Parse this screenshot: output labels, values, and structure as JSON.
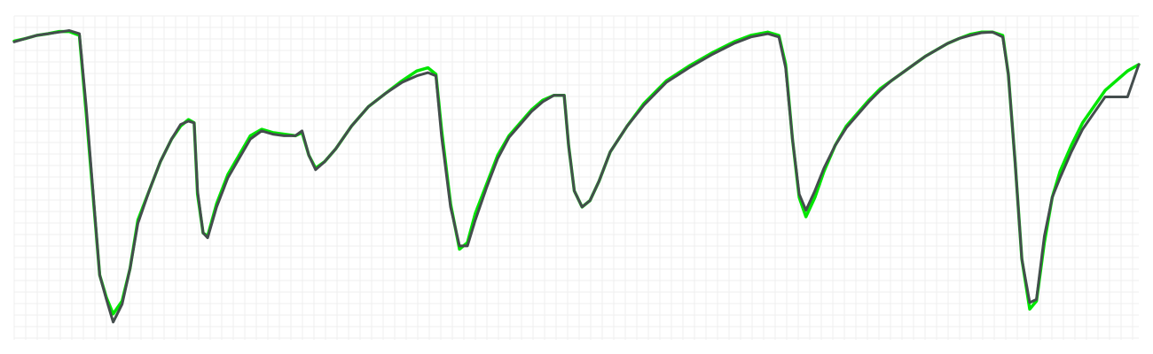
{
  "chart_data": {
    "type": "line",
    "title": "",
    "xlabel": "",
    "ylabel": "",
    "xlim": [
      0,
      100
    ],
    "ylim": [
      0,
      100
    ],
    "grid": true,
    "legend": "none",
    "series": [
      {
        "color": "#00e600",
        "points": [
          [
            0,
            92.2
          ],
          [
            1,
            93.0
          ],
          [
            2,
            94.0
          ],
          [
            3,
            94.5
          ],
          [
            4,
            95.2
          ],
          [
            4.9,
            95.2
          ],
          [
            5.8,
            94.0
          ],
          [
            6.4,
            70.0
          ],
          [
            7.0,
            45.0
          ],
          [
            7.6,
            20.0
          ],
          [
            8.2,
            13.0
          ],
          [
            8.8,
            8.0
          ],
          [
            9.6,
            12.0
          ],
          [
            10.3,
            22.0
          ],
          [
            11.0,
            37.0
          ],
          [
            12.0,
            46.0
          ],
          [
            13.0,
            55.0
          ],
          [
            14.0,
            62.0
          ],
          [
            14.8,
            66.0
          ],
          [
            15.5,
            68.0
          ],
          [
            16.0,
            67.0
          ],
          [
            16.3,
            45.0
          ],
          [
            16.8,
            33.0
          ],
          [
            17.2,
            32.0
          ],
          [
            18.0,
            42.0
          ],
          [
            19.0,
            51.0
          ],
          [
            20.0,
            57.0
          ],
          [
            21.0,
            63.0
          ],
          [
            22.0,
            65.0
          ],
          [
            23.0,
            64.0
          ],
          [
            24.0,
            63.5
          ],
          [
            25.0,
            63.0
          ],
          [
            25.6,
            64.0
          ],
          [
            26.2,
            57.0
          ],
          [
            26.8,
            53.0
          ],
          [
            27.6,
            55.0
          ],
          [
            28.6,
            59.0
          ],
          [
            30.0,
            66.0
          ],
          [
            31.5,
            72.0
          ],
          [
            33.0,
            76.0
          ],
          [
            34.5,
            80.0
          ],
          [
            35.8,
            83.0
          ],
          [
            36.8,
            84.0
          ],
          [
            37.5,
            82.0
          ],
          [
            38.0,
            65.0
          ],
          [
            38.8,
            42.0
          ],
          [
            39.6,
            28.0
          ],
          [
            40.3,
            30.0
          ],
          [
            41.0,
            39.0
          ],
          [
            42.0,
            48.0
          ],
          [
            43.0,
            57.0
          ],
          [
            44.0,
            63.0
          ],
          [
            45.0,
            67.0
          ],
          [
            46.0,
            71.0
          ],
          [
            47.0,
            74.0
          ],
          [
            48.0,
            75.5
          ],
          [
            48.9,
            75.5
          ],
          [
            49.3,
            60.0
          ],
          [
            49.8,
            46.0
          ],
          [
            50.5,
            41.0
          ],
          [
            51.2,
            43.0
          ],
          [
            52.0,
            49.0
          ],
          [
            53.0,
            58.0
          ],
          [
            54.5,
            66.0
          ],
          [
            56.0,
            73.0
          ],
          [
            58.0,
            80.0
          ],
          [
            60.0,
            84.5
          ],
          [
            62.0,
            88.5
          ],
          [
            64.0,
            92.0
          ],
          [
            65.5,
            94.0
          ],
          [
            67.0,
            95.0
          ],
          [
            68.0,
            94.0
          ],
          [
            68.6,
            85.0
          ],
          [
            69.2,
            62.0
          ],
          [
            69.8,
            44.0
          ],
          [
            70.4,
            38.0
          ],
          [
            71.2,
            44.0
          ],
          [
            72.0,
            52.0
          ],
          [
            73.0,
            60.0
          ],
          [
            74.0,
            66.0
          ],
          [
            75.0,
            70.0
          ],
          [
            76.0,
            74.0
          ],
          [
            77.0,
            77.5
          ],
          [
            78.0,
            80.0
          ],
          [
            79.0,
            82.5
          ],
          [
            80.0,
            85.0
          ],
          [
            81.0,
            87.5
          ],
          [
            82.0,
            89.5
          ],
          [
            83.0,
            91.5
          ],
          [
            84.0,
            93.0
          ],
          [
            85.0,
            94.3
          ],
          [
            86.0,
            95.0
          ],
          [
            87.0,
            95.0
          ],
          [
            87.9,
            94.0
          ],
          [
            88.4,
            82.0
          ],
          [
            89.0,
            55.0
          ],
          [
            89.6,
            25.0
          ],
          [
            90.3,
            9.5
          ],
          [
            90.9,
            12.0
          ],
          [
            91.6,
            30.0
          ],
          [
            92.3,
            44.0
          ],
          [
            93.0,
            52.0
          ],
          [
            94.0,
            60.0
          ],
          [
            95.0,
            67.0
          ],
          [
            96.0,
            72.0
          ],
          [
            97.0,
            77.0
          ],
          [
            98.0,
            80.0
          ],
          [
            99.0,
            83.0
          ],
          [
            100,
            85.0
          ]
        ]
      },
      {
        "color": "#444d4d",
        "points": [
          [
            0,
            92.0
          ],
          [
            1,
            93.0
          ],
          [
            2,
            94.0
          ],
          [
            3,
            94.5
          ],
          [
            4,
            95.0
          ],
          [
            4.9,
            95.5
          ],
          [
            5.8,
            94.5
          ],
          [
            6.4,
            72.0
          ],
          [
            7.0,
            46.0
          ],
          [
            7.6,
            20.0
          ],
          [
            8.2,
            12.5
          ],
          [
            8.8,
            5.5
          ],
          [
            9.6,
            11.0
          ],
          [
            10.3,
            22.0
          ],
          [
            11.0,
            36.0
          ],
          [
            12.0,
            46.0
          ],
          [
            13.0,
            55.0
          ],
          [
            14.0,
            62.0
          ],
          [
            14.8,
            66.5
          ],
          [
            15.5,
            67.5
          ],
          [
            16.0,
            67.0
          ],
          [
            16.3,
            46.0
          ],
          [
            16.8,
            33.0
          ],
          [
            17.2,
            31.5
          ],
          [
            18.0,
            41.0
          ],
          [
            19.0,
            50.0
          ],
          [
            20.0,
            56.0
          ],
          [
            21.0,
            62.0
          ],
          [
            22.0,
            64.5
          ],
          [
            23.0,
            63.5
          ],
          [
            24.0,
            63.0
          ],
          [
            25.0,
            63.0
          ],
          [
            25.6,
            64.5
          ],
          [
            26.2,
            57.0
          ],
          [
            26.8,
            52.5
          ],
          [
            27.6,
            55.0
          ],
          [
            28.6,
            59.0
          ],
          [
            30.0,
            66.0
          ],
          [
            31.5,
            72.0
          ],
          [
            33.0,
            76.0
          ],
          [
            34.5,
            79.5
          ],
          [
            35.8,
            81.5
          ],
          [
            36.8,
            82.5
          ],
          [
            37.5,
            81.5
          ],
          [
            38.0,
            63.0
          ],
          [
            38.8,
            41.0
          ],
          [
            39.6,
            29.0
          ],
          [
            40.3,
            29.0
          ],
          [
            41.0,
            37.0
          ],
          [
            42.0,
            47.0
          ],
          [
            43.0,
            56.0
          ],
          [
            44.0,
            62.5
          ],
          [
            45.0,
            66.5
          ],
          [
            46.0,
            70.5
          ],
          [
            47.0,
            73.5
          ],
          [
            48.0,
            75.5
          ],
          [
            48.9,
            75.5
          ],
          [
            49.3,
            60.0
          ],
          [
            49.8,
            46.0
          ],
          [
            50.5,
            41.0
          ],
          [
            51.2,
            43.0
          ],
          [
            52.0,
            49.0
          ],
          [
            53.0,
            58.0
          ],
          [
            54.5,
            66.0
          ],
          [
            56.0,
            72.5
          ],
          [
            58.0,
            79.5
          ],
          [
            60.0,
            84.0
          ],
          [
            62.0,
            88.0
          ],
          [
            64.0,
            91.5
          ],
          [
            65.5,
            93.5
          ],
          [
            67.0,
            94.5
          ],
          [
            68.0,
            93.5
          ],
          [
            68.6,
            84.0
          ],
          [
            69.2,
            62.0
          ],
          [
            69.8,
            45.0
          ],
          [
            70.4,
            40.0
          ],
          [
            71.2,
            46.0
          ],
          [
            72.0,
            53.0
          ],
          [
            73.0,
            60.0
          ],
          [
            74.0,
            65.5
          ],
          [
            75.0,
            69.5
          ],
          [
            76.0,
            73.5
          ],
          [
            77.0,
            77.0
          ],
          [
            78.0,
            80.0
          ],
          [
            79.0,
            82.5
          ],
          [
            80.0,
            85.0
          ],
          [
            81.0,
            87.5
          ],
          [
            82.0,
            89.5
          ],
          [
            83.0,
            91.5
          ],
          [
            84.0,
            93.0
          ],
          [
            85.0,
            94.0
          ],
          [
            86.0,
            94.8
          ],
          [
            87.0,
            95.0
          ],
          [
            87.9,
            93.5
          ],
          [
            88.4,
            82.0
          ],
          [
            89.0,
            55.0
          ],
          [
            89.6,
            25.0
          ],
          [
            90.3,
            11.5
          ],
          [
            90.9,
            12.5
          ],
          [
            91.6,
            32.0
          ],
          [
            92.3,
            44.0
          ],
          [
            93.0,
            50.0
          ],
          [
            94.0,
            58.0
          ],
          [
            95.0,
            65.0
          ],
          [
            96.0,
            70.0
          ],
          [
            97.0,
            75.0
          ],
          [
            98.0,
            75.0
          ],
          [
            99.0,
            75.0
          ],
          [
            100,
            85.0
          ]
        ]
      }
    ]
  }
}
